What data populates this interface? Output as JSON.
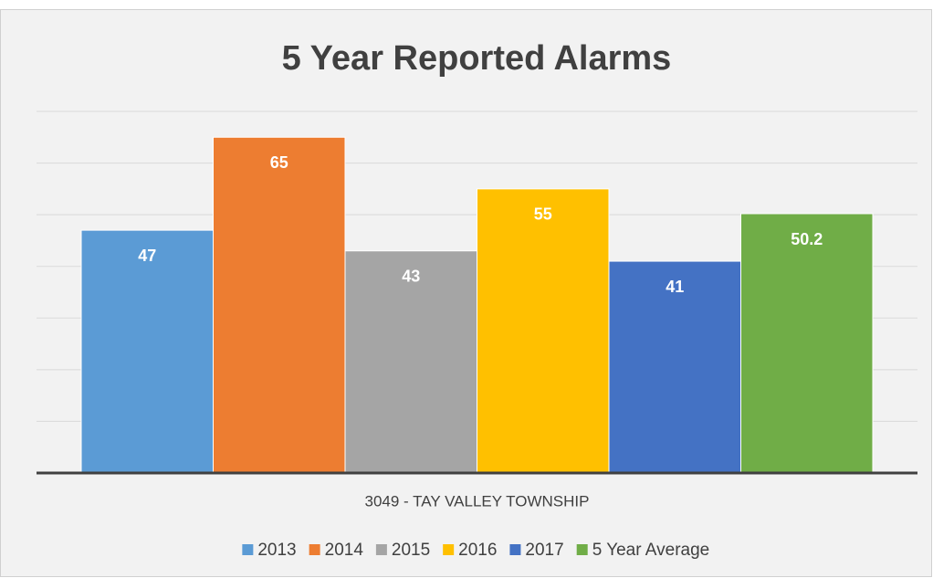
{
  "chart_data": {
    "type": "bar",
    "title": "5 Year Reported Alarms",
    "categories": [
      "3049 - TAY VALLEY TOWNSHIP"
    ],
    "series": [
      {
        "name": "2013",
        "color": "#5b9bd5",
        "values": [
          47
        ]
      },
      {
        "name": "2014",
        "color": "#ed7d31",
        "values": [
          65
        ]
      },
      {
        "name": "2015",
        "color": "#a5a5a5",
        "values": [
          43
        ]
      },
      {
        "name": "2016",
        "color": "#ffc000",
        "values": [
          55
        ]
      },
      {
        "name": "2017",
        "color": "#4472c4",
        "values": [
          41
        ]
      },
      {
        "name": "5 Year Average",
        "color": "#70ad47",
        "values": [
          50.2
        ]
      }
    ],
    "ylim": [
      0,
      70
    ],
    "yticks": [
      0,
      10,
      20,
      30,
      40,
      50,
      60,
      70
    ],
    "grid": true,
    "legend": "bottom"
  }
}
